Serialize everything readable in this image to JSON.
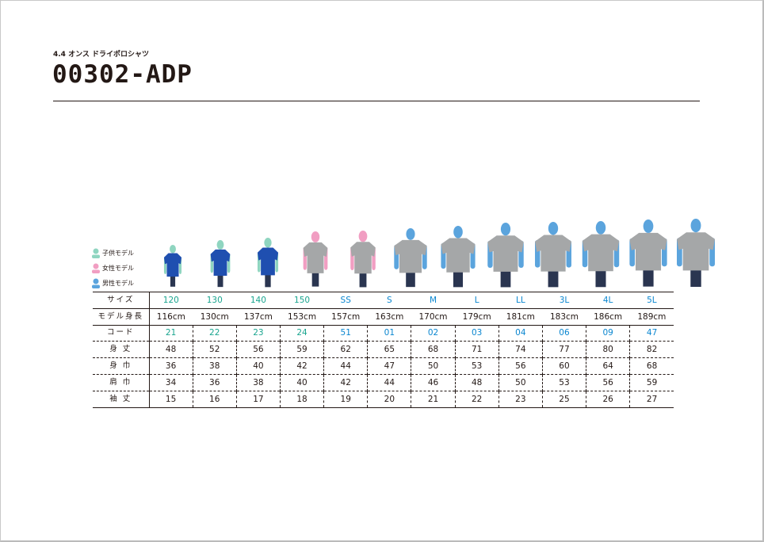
{
  "header": {
    "subtitle": "4.4 オンス ドライポロシャツ",
    "title": "00302-ADP"
  },
  "legend": [
    {
      "label": "子供モデル",
      "color": "#8fd5c0"
    },
    {
      "label": "女性モデル",
      "color": "#f19ec2"
    },
    {
      "label": "男性モデル",
      "color": "#5ba4dd"
    }
  ],
  "colors": {
    "kids_text": "#1aa58f",
    "adult_text": "#0a86d0",
    "shirt_blue": "#1f4fb0",
    "shirt_gray": "#a5a7a8"
  },
  "models": [
    {
      "type": "kid",
      "shirt": "blue",
      "height": 116
    },
    {
      "type": "kid",
      "shirt": "blue",
      "height": 130
    },
    {
      "type": "kid",
      "shirt": "blue",
      "height": 137
    },
    {
      "type": "female",
      "shirt": "gray",
      "height": 153
    },
    {
      "type": "female",
      "shirt": "gray",
      "height": 157
    },
    {
      "type": "male",
      "shirt": "gray",
      "height": 163
    },
    {
      "type": "male",
      "shirt": "gray",
      "height": 170
    },
    {
      "type": "male",
      "shirt": "gray",
      "height": 179
    },
    {
      "type": "male",
      "shirt": "gray",
      "height": 181
    },
    {
      "type": "male",
      "shirt": "gray",
      "height": 183
    },
    {
      "type": "male",
      "shirt": "gray",
      "height": 186
    },
    {
      "type": "male",
      "shirt": "gray",
      "height": 189
    }
  ],
  "table": {
    "rows": [
      {
        "label": "サイズ",
        "values": [
          "120",
          "130",
          "140",
          "150",
          "SS",
          "S",
          "M",
          "L",
          "LL",
          "3L",
          "4L",
          "5L"
        ]
      },
      {
        "label": "モデル身長",
        "values": [
          "116cm",
          "130cm",
          "137cm",
          "153cm",
          "157cm",
          "163cm",
          "170cm",
          "179cm",
          "181cm",
          "183cm",
          "186cm",
          "189cm"
        ]
      },
      {
        "label": "コード",
        "values": [
          "21",
          "22",
          "23",
          "24",
          "51",
          "01",
          "02",
          "03",
          "04",
          "06",
          "09",
          "47"
        ]
      },
      {
        "label": "身 丈",
        "values": [
          "48",
          "52",
          "56",
          "59",
          "62",
          "65",
          "68",
          "71",
          "74",
          "77",
          "80",
          "82"
        ]
      },
      {
        "label": "身 巾",
        "values": [
          "36",
          "38",
          "40",
          "42",
          "44",
          "47",
          "50",
          "53",
          "56",
          "60",
          "64",
          "68"
        ]
      },
      {
        "label": "肩 巾",
        "values": [
          "34",
          "36",
          "38",
          "40",
          "42",
          "44",
          "46",
          "48",
          "50",
          "53",
          "56",
          "59"
        ]
      },
      {
        "label": "袖 丈",
        "values": [
          "15",
          "16",
          "17",
          "18",
          "19",
          "20",
          "21",
          "22",
          "23",
          "25",
          "26",
          "27"
        ]
      }
    ]
  }
}
